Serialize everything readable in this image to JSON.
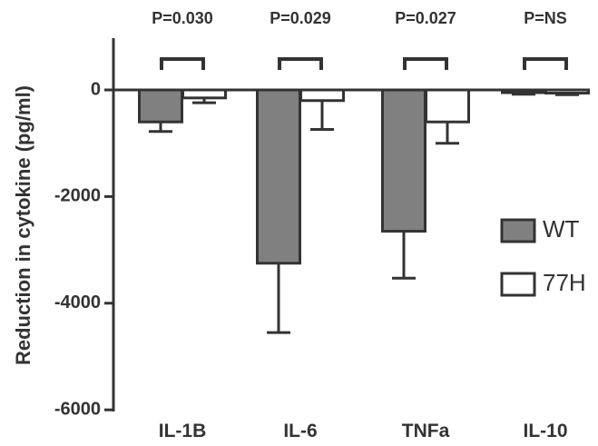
{
  "chart_data": {
    "type": "bar",
    "title": "",
    "xlabel": "",
    "ylabel": "Reduction in cytokine (pg/ml)",
    "ylim": [
      -6000,
      1000
    ],
    "yticks": [
      0,
      -2000,
      -4000,
      -6000
    ],
    "ytick_labels": [
      "0",
      "-2000",
      "-4000",
      "-6000"
    ],
    "categories": [
      "IL-1B",
      "IL-6",
      "TNFa",
      "IL-10"
    ],
    "series": [
      {
        "name": "WT",
        "values": [
          -600,
          -3250,
          -2650,
          -50
        ],
        "error": [
          180,
          1300,
          880,
          30
        ],
        "color": "#808080"
      },
      {
        "name": "77H",
        "values": [
          -150,
          -200,
          -600,
          -60
        ],
        "error": [
          90,
          540,
          400,
          30
        ],
        "color": "#ffffff"
      }
    ],
    "p_values": [
      "P=0.030",
      "P=0.029",
      "P=0.027",
      "P=NS"
    ],
    "legend_position": "right",
    "grid": false
  }
}
